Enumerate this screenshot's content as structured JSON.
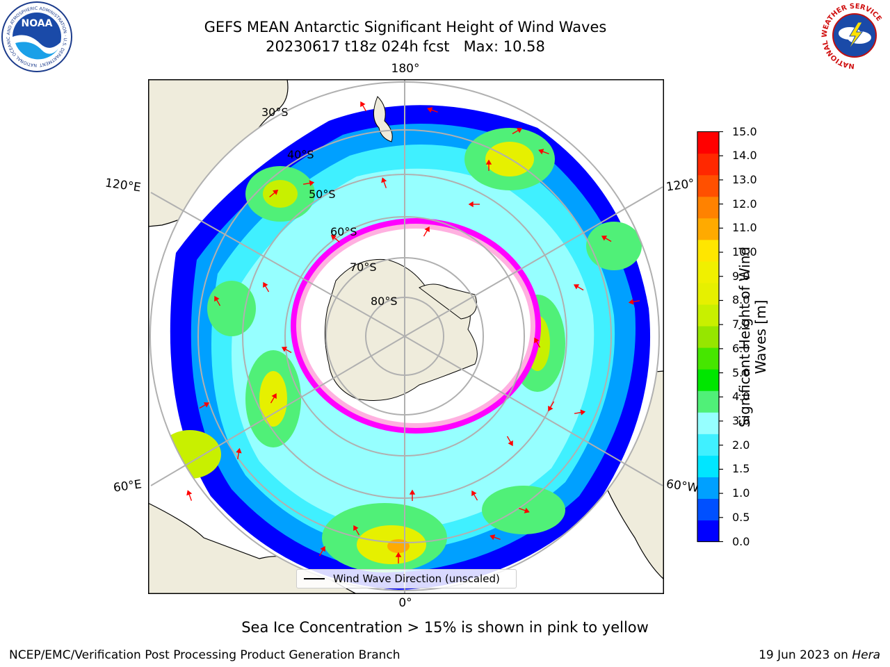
{
  "header": {
    "title": "GEFS MEAN Antarctic Significant Height of Wind Waves",
    "subtitle": "20230617 t18z 024h fcst   Max: 10.58"
  },
  "logos": {
    "noaa": {
      "text": "NOAA",
      "ring_text": "NATIONAL OCEANIC AND ATMOSPHERIC ADMINISTRATION · U.S. DEPARTMENT OF COMMERCE"
    },
    "nws": {
      "ring_text": "NATIONAL WEATHER SERVICE"
    }
  },
  "map": {
    "projection": "south-polar-stereographic",
    "longitude_labels": {
      "top": "180°",
      "upper_left": "120°E",
      "upper_right": "120°",
      "lower_left": "60°E",
      "lower_right": "60°W",
      "bottom": "0°"
    },
    "latitude_labels": [
      "30°S",
      "40°S",
      "50°S",
      "60°S",
      "70°S",
      "80°S"
    ],
    "legend_label": "Wind Wave Direction (unscaled)",
    "arrow_color": "#ff0000",
    "land_color": "#efecdc",
    "sea_ice_colors": [
      "#ff00ff",
      "#ffb0e0",
      "#ffff80"
    ]
  },
  "colorbar": {
    "label": "Significant Height of Wind\nWaves [m]",
    "ticks": [
      "15.0",
      "14.0",
      "13.0",
      "12.0",
      "11.0",
      "10.0",
      "9.0",
      "8.0",
      "7.0",
      "6.0",
      "5.0",
      "4.0",
      "3.0",
      "2.0",
      "1.5",
      "1.0",
      "0.5",
      "0.0"
    ],
    "colors": [
      "#0000ff",
      "#0050ff",
      "#00a0ff",
      "#00e6ff",
      "#40f0ff",
      "#96ffff",
      "#50f078",
      "#00e600",
      "#46e600",
      "#96e600",
      "#c8f000",
      "#e6f000",
      "#f0f000",
      "#ffe600",
      "#ffaa00",
      "#ff8200",
      "#ff5000",
      "#ff2800",
      "#ff0000"
    ]
  },
  "note": "Sea Ice Concentration > 15% is shown in pink to yellow",
  "footer": {
    "left": "NCEP/EMC/Verification Post Processing Product Generation Branch",
    "date": "19 Jun 2023 on ",
    "host": "Hera"
  }
}
